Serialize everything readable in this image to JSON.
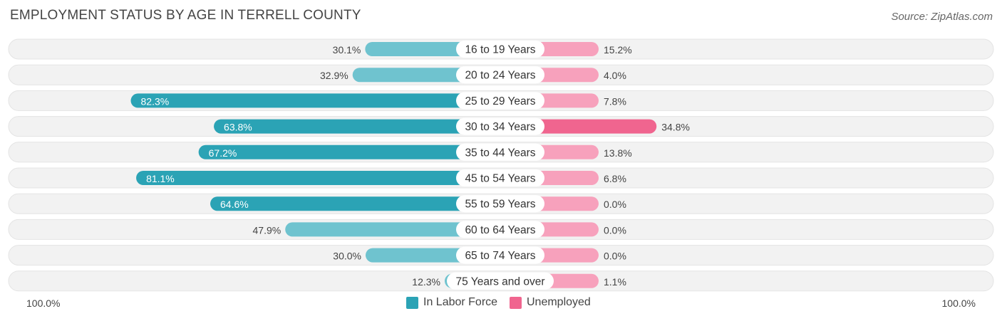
{
  "title": "EMPLOYMENT STATUS BY AGE IN TERRELL COUNTY",
  "source": "Source: ZipAtlas.com",
  "colors": {
    "labor_dark": "#2ba3b5",
    "labor_light": "#6fc3cf",
    "unemp_dark": "#f0658f",
    "unemp_light": "#f7a1bc",
    "track": "#f2f2f2"
  },
  "axis": {
    "left_label": "100.0%",
    "right_label": "100.0%"
  },
  "legend": {
    "labor_label": "In Labor Force",
    "unemp_label": "Unemployed"
  },
  "chart_data": {
    "type": "bar",
    "orientation": "horizontal-diverging",
    "title": "EMPLOYMENT STATUS BY AGE IN TERRELL COUNTY",
    "categories": [
      "16 to 19 Years",
      "20 to 24 Years",
      "25 to 29 Years",
      "30 to 34 Years",
      "35 to 44 Years",
      "45 to 54 Years",
      "55 to 59 Years",
      "60 to 64 Years",
      "65 to 74 Years",
      "75 Years and over"
    ],
    "series": [
      {
        "name": "In Labor Force",
        "values": [
          30.1,
          32.9,
          82.3,
          63.8,
          67.2,
          81.1,
          64.6,
          47.9,
          30.0,
          12.3
        ]
      },
      {
        "name": "Unemployed",
        "values": [
          15.2,
          4.0,
          7.8,
          34.8,
          13.8,
          6.8,
          0.0,
          0.0,
          0.0,
          1.1
        ]
      }
    ],
    "labor_labels": [
      "30.1%",
      "32.9%",
      "82.3%",
      "63.8%",
      "67.2%",
      "81.1%",
      "64.6%",
      "47.9%",
      "30.0%",
      "12.3%"
    ],
    "unemp_labels": [
      "15.2%",
      "4.0%",
      "7.8%",
      "34.8%",
      "13.8%",
      "6.8%",
      "0.0%",
      "0.0%",
      "0.0%",
      "1.1%"
    ],
    "xlim": [
      -100,
      100
    ],
    "legend_position": "bottom-center"
  }
}
